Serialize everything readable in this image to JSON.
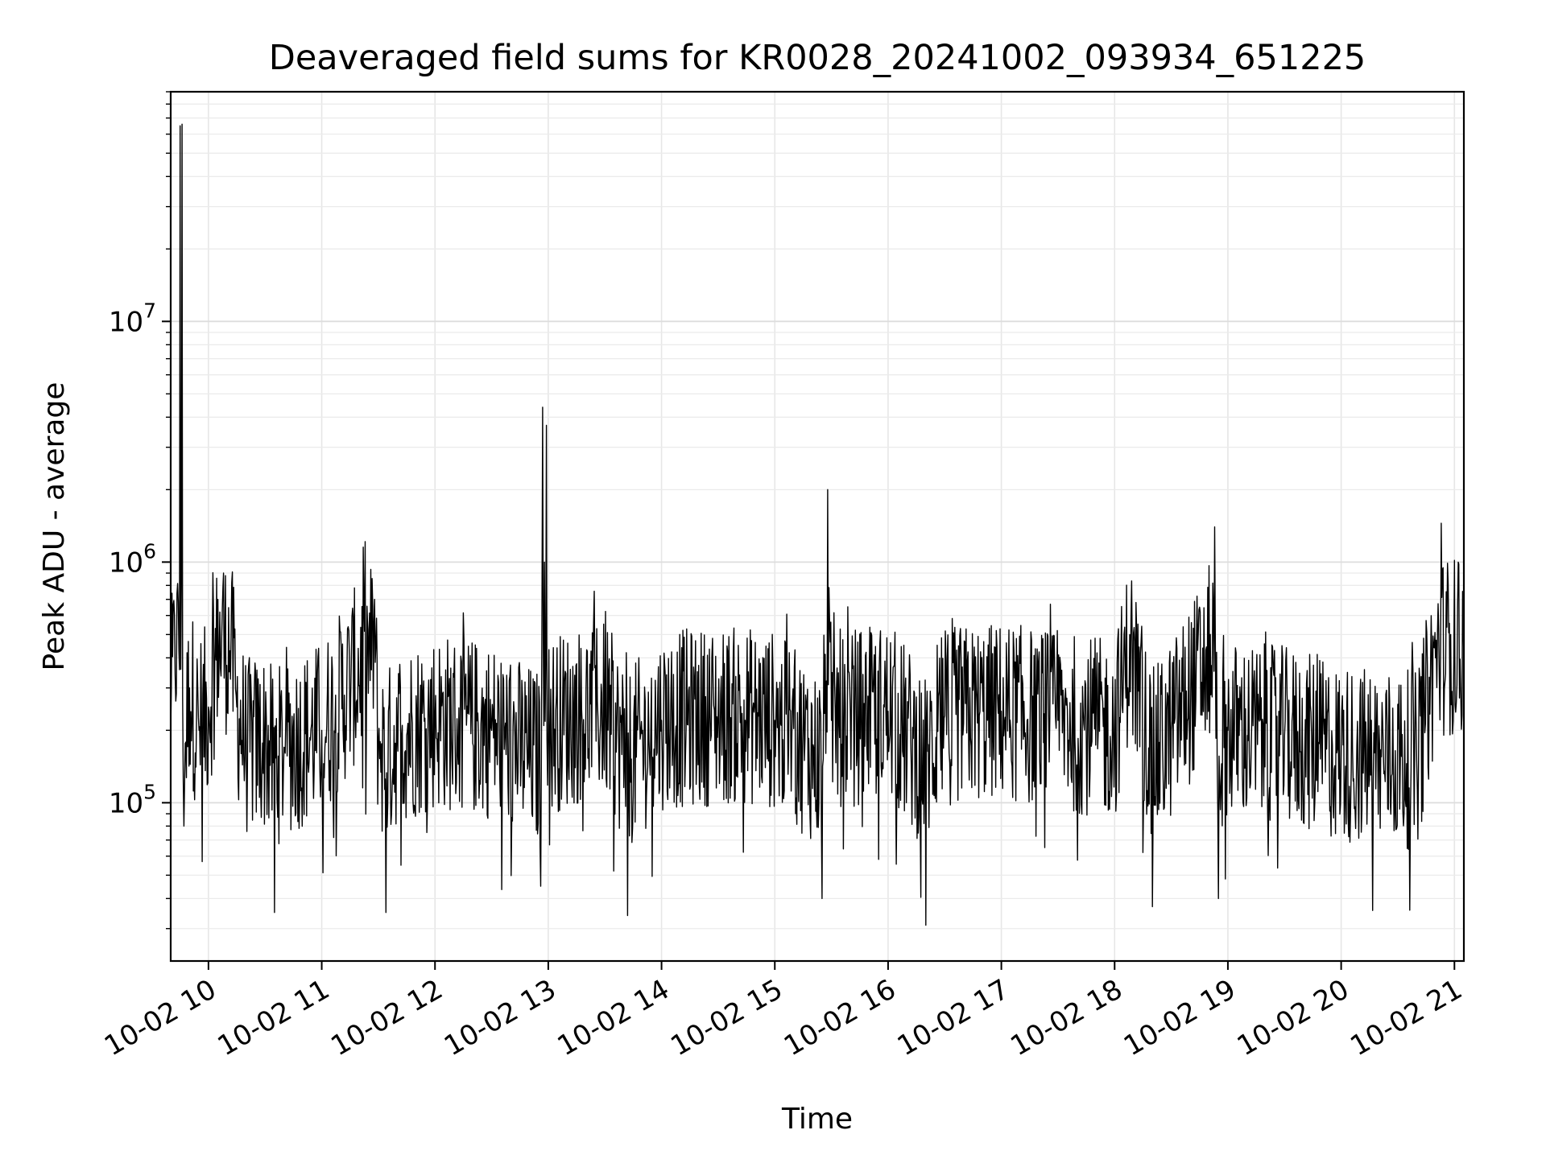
{
  "chart_data": {
    "type": "line",
    "title": "Deaveraged field sums for KR0028_20241002_093934_651225",
    "xlabel": "Time",
    "ylabel": "Peak ADU - average",
    "yscale": "log",
    "ylim": [
      22000,
      90000000
    ],
    "xlim": [
      "2024-10-02 09:40",
      "2024-10-02 21:05"
    ],
    "grid": "major and minor, light gray",
    "line_color": "#000000",
    "x_ticks": [
      {
        "at": "2024-10-02 10:00",
        "label": "10-02 10"
      },
      {
        "at": "2024-10-02 11:00",
        "label": "10-02 11"
      },
      {
        "at": "2024-10-02 12:00",
        "label": "10-02 12"
      },
      {
        "at": "2024-10-02 13:00",
        "label": "10-02 13"
      },
      {
        "at": "2024-10-02 14:00",
        "label": "10-02 14"
      },
      {
        "at": "2024-10-02 15:00",
        "label": "10-02 15"
      },
      {
        "at": "2024-10-02 16:00",
        "label": "10-02 16"
      },
      {
        "at": "2024-10-02 17:00",
        "label": "10-02 17"
      },
      {
        "at": "2024-10-02 18:00",
        "label": "10-02 18"
      },
      {
        "at": "2024-10-02 19:00",
        "label": "10-02 19"
      },
      {
        "at": "2024-10-02 20:00",
        "label": "10-02 20"
      },
      {
        "at": "2024-10-02 21:00",
        "label": "10-02 21"
      }
    ],
    "y_ticks": [
      {
        "value": 100000,
        "base": "10",
        "exp": "5"
      },
      {
        "value": 1000000,
        "base": "10",
        "exp": "6"
      },
      {
        "value": 10000000,
        "base": "10",
        "exp": "7"
      }
    ],
    "series": [
      {
        "color": "#000000",
        "points": [
          [
            "2024-10-02 09:40",
            200000
          ],
          [
            "2024-10-02 09:42",
            600000
          ],
          [
            "2024-10-02 09:44",
            680000
          ],
          [
            "2024-10-02 09:45",
            65000000
          ],
          [
            "2024-10-02 09:46",
            66000000
          ],
          [
            "2024-10-02 09:47",
            80000
          ],
          [
            "2024-10-02 09:50",
            300000
          ],
          [
            "2024-10-02 09:55",
            200000
          ],
          [
            "2024-10-02 10:00",
            250000
          ],
          [
            "2024-10-02 10:05",
            700000
          ],
          [
            "2024-10-02 10:08",
            900000
          ],
          [
            "2024-10-02 10:12",
            500000
          ],
          [
            "2024-10-02 10:15",
            250000
          ],
          [
            "2024-10-02 10:20",
            170000
          ],
          [
            "2024-10-02 10:30",
            180000
          ],
          [
            "2024-10-02 10:35",
            35000
          ],
          [
            "2024-10-02 10:40",
            170000
          ],
          [
            "2024-10-02 11:00",
            200000
          ],
          [
            "2024-10-02 11:28",
            700000
          ],
          [
            "2024-10-02 11:30",
            180000
          ],
          [
            "2024-10-02 11:34",
            35000
          ],
          [
            "2024-10-02 11:40",
            190000
          ],
          [
            "2024-10-02 12:00",
            220000
          ],
          [
            "2024-10-02 12:30",
            200000
          ],
          [
            "2024-10-02 12:56",
            45000
          ],
          [
            "2024-10-02 12:57",
            4400000
          ],
          [
            "2024-10-02 12:58",
            1000000
          ],
          [
            "2024-10-02 12:59",
            3700000
          ],
          [
            "2024-10-02 13:00",
            210000
          ],
          [
            "2024-10-02 13:30",
            250000
          ],
          [
            "2024-10-02 13:42",
            34000
          ],
          [
            "2024-10-02 14:00",
            220000
          ],
          [
            "2024-10-02 14:30",
            230000
          ],
          [
            "2024-10-02 14:45",
            230000
          ],
          [
            "2024-10-02 15:00",
            220000
          ],
          [
            "2024-10-02 15:25",
            40000
          ],
          [
            "2024-10-02 15:28",
            2000000
          ],
          [
            "2024-10-02 15:30",
            220000
          ],
          [
            "2024-10-02 16:00",
            240000
          ],
          [
            "2024-10-02 16:20",
            31000
          ],
          [
            "2024-10-02 16:30",
            230000
          ],
          [
            "2024-10-02 17:00",
            240000
          ],
          [
            "2024-10-02 17:30",
            220000
          ],
          [
            "2024-10-02 18:00",
            200000
          ],
          [
            "2024-10-02 18:08",
            500000
          ],
          [
            "2024-10-02 18:20",
            37000
          ],
          [
            "2024-10-02 18:30",
            200000
          ],
          [
            "2024-10-02 18:53",
            1400000
          ],
          [
            "2024-10-02 18:55",
            40000
          ],
          [
            "2024-10-02 19:00",
            200000
          ],
          [
            "2024-10-02 19:30",
            190000
          ],
          [
            "2024-10-02 20:00",
            160000
          ],
          [
            "2024-10-02 20:40",
            150000
          ],
          [
            "2024-10-02 20:50",
            400000
          ],
          [
            "2024-10-02 20:53",
            1450000
          ],
          [
            "2024-10-02 20:58",
            500000
          ],
          [
            "2024-10-02 21:02",
            1000000
          ],
          [
            "2024-10-02 21:05",
            400000
          ]
        ]
      }
    ]
  }
}
